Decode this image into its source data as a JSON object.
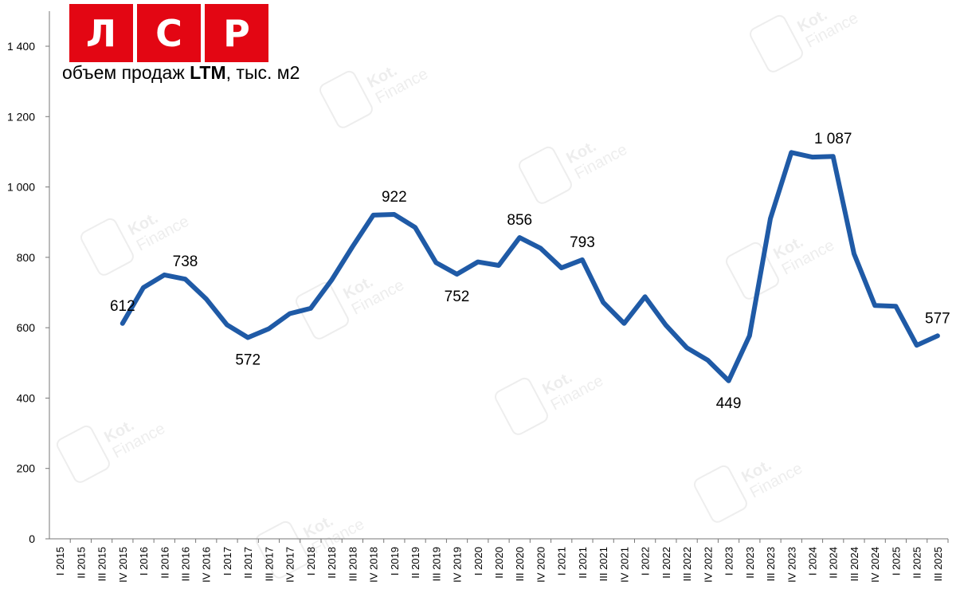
{
  "logo": {
    "letters": [
      "Л",
      "С",
      "Р"
    ],
    "color": "#e30613"
  },
  "subtitle": {
    "prefix": "объем продаж ",
    "bold": "LTM",
    "suffix": ", тыс. м2"
  },
  "watermark": "Kot. Finance",
  "chart_data": {
    "type": "line",
    "title": "",
    "xlabel": "",
    "ylabel": "",
    "ylim": [
      0,
      1400
    ],
    "yticks": [
      0,
      200,
      400,
      600,
      800,
      1000,
      1200,
      1400
    ],
    "ytick_labels": [
      "0",
      "200",
      "400",
      "600",
      "800",
      "1 000",
      "1 200",
      "1 400"
    ],
    "grid": false,
    "line_color": "#1f5aa6",
    "categories": [
      "I 2015",
      "II 2015",
      "III 2015",
      "IV 2015",
      "I 2016",
      "II 2016",
      "III 2016",
      "IV 2016",
      "I 2017",
      "II 2017",
      "III 2017",
      "IV 2017",
      "I 2018",
      "II 2018",
      "III 2018",
      "IV 2018",
      "I 2019",
      "II 2019",
      "III 2019",
      "IV 2019",
      "I 2020",
      "II 2020",
      "III 2020",
      "IV 2020",
      "I 2021",
      "II 2021",
      "III 2021",
      "IV 2021",
      "I 2022",
      "II 2022",
      "III 2022",
      "IV 2022",
      "I 2023",
      "II 2023",
      "III 2023",
      "IV 2023",
      "I 2024",
      "II 2024",
      "III 2024",
      "IV 2024",
      "I 2025",
      "II 2025",
      "III 2025"
    ],
    "values": [
      null,
      null,
      null,
      612,
      714,
      750,
      738,
      682,
      608,
      572,
      597,
      640,
      655,
      735,
      830,
      920,
      922,
      885,
      785,
      752,
      787,
      777,
      856,
      826,
      770,
      793,
      672,
      612,
      688,
      607,
      543,
      508,
      449,
      577,
      910,
      1098,
      1085,
      1087,
      810,
      663,
      661,
      550,
      577
    ],
    "data_labels": [
      {
        "category": "IV 2015",
        "text": "612",
        "pos": "above"
      },
      {
        "category": "III 2016",
        "text": "738",
        "pos": "above"
      },
      {
        "category": "II 2017",
        "text": "572",
        "pos": "below"
      },
      {
        "category": "I 2019",
        "text": "922",
        "pos": "above"
      },
      {
        "category": "IV 2019",
        "text": "752",
        "pos": "below"
      },
      {
        "category": "III 2020",
        "text": "856",
        "pos": "above"
      },
      {
        "category": "II 2021",
        "text": "793",
        "pos": "above"
      },
      {
        "category": "I 2023",
        "text": "449",
        "pos": "below"
      },
      {
        "category": "II 2024",
        "text": "1 087",
        "pos": "above"
      },
      {
        "category": "III 2025",
        "text": "577",
        "pos": "above"
      }
    ]
  }
}
